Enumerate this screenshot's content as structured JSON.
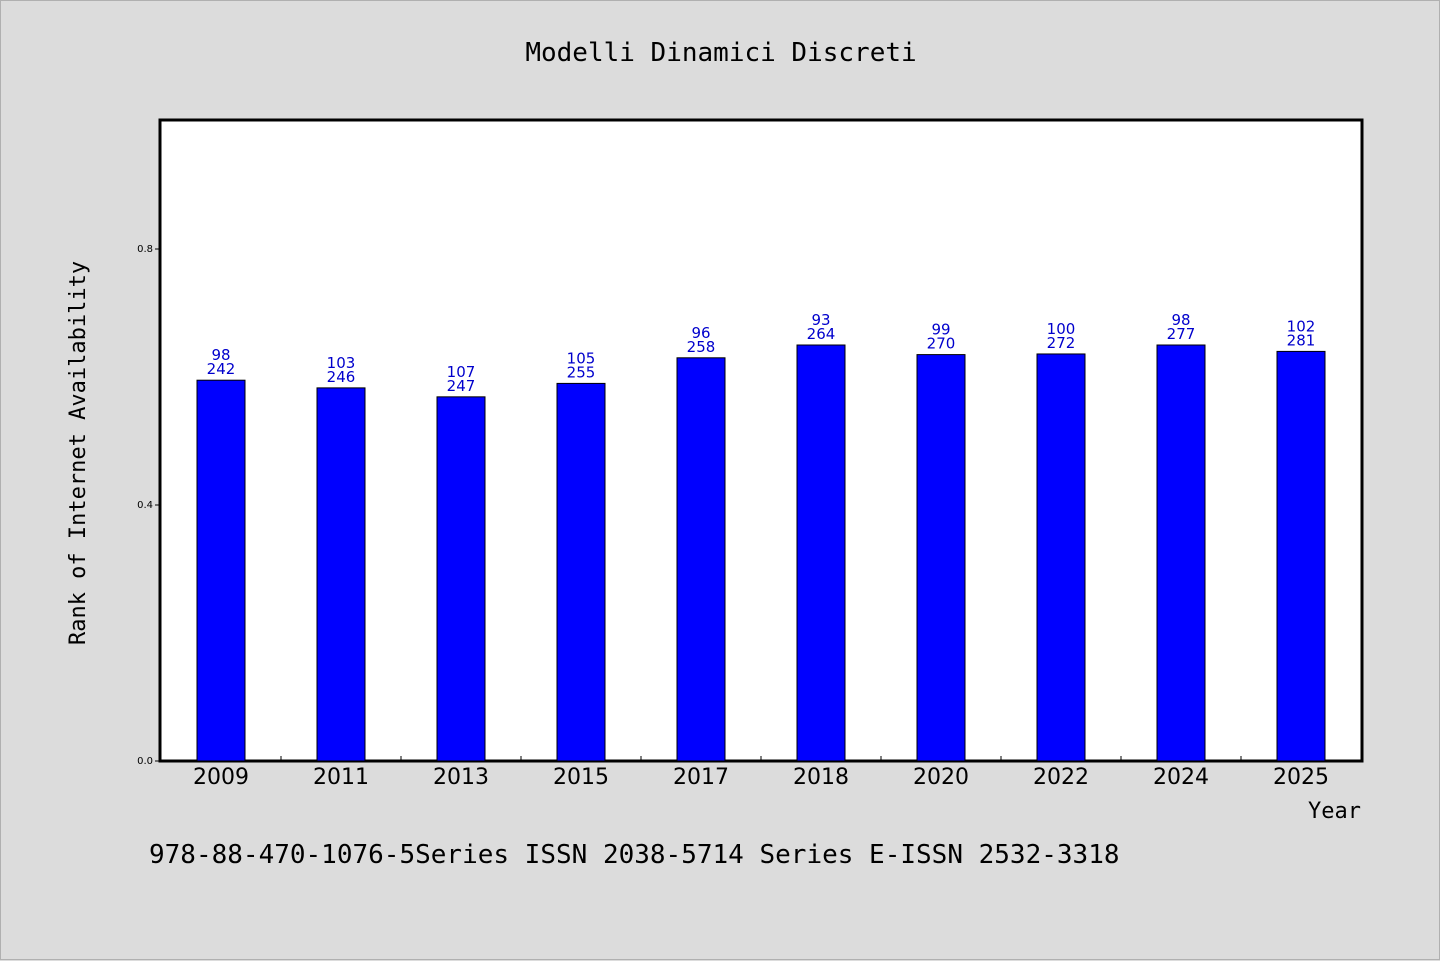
{
  "chart_data": {
    "type": "bar",
    "title": "Modelli Dinamici Discreti",
    "xlabel": "Year",
    "ylabel": "Rank of Internet Availability",
    "ylim": [
      0,
      1.0
    ],
    "yticks": [
      "0.0",
      "0.4",
      "0.8"
    ],
    "ytick_values": [
      0.0,
      0.4,
      0.8
    ],
    "categories": [
      "2009",
      "2011",
      "2013",
      "2015",
      "2017",
      "2018",
      "2020",
      "2022",
      "2024",
      "2025"
    ],
    "values": [
      0.595,
      0.583,
      0.569,
      0.59,
      0.63,
      0.65,
      0.635,
      0.636,
      0.65,
      0.64
    ],
    "annotations_top": [
      "98",
      "103",
      "107",
      "105",
      "96",
      "93",
      "99",
      "100",
      "98",
      "102"
    ],
    "annotations_bottom": [
      "242",
      "246",
      "247",
      "255",
      "258",
      "264",
      "270",
      "272",
      "277",
      "281"
    ],
    "bar_color": "#0000ff",
    "label_color": "#0000cc",
    "grid": false,
    "legend": "none"
  },
  "footer": {
    "text": "978-88-470-1076-5Series ISSN 2038-5714 Series E-ISSN 2532-3318"
  }
}
